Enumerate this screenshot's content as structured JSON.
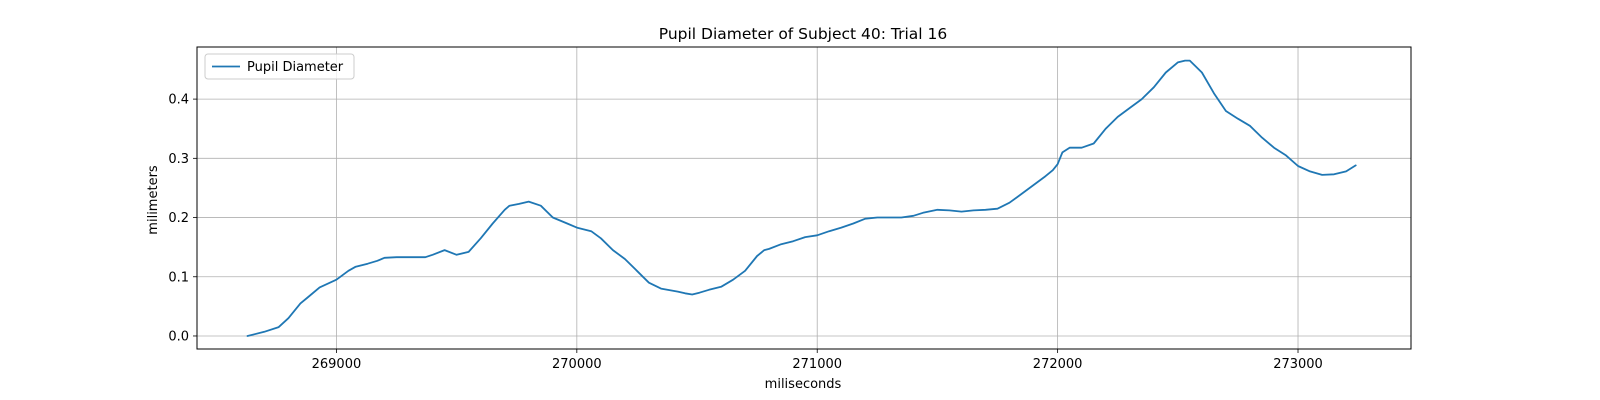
{
  "chart_data": {
    "type": "line",
    "title": "Pupil Diameter of Subject 40: Trial 16",
    "xlabel": "miliseconds",
    "ylabel": "milimeters",
    "xlim": [
      268420,
      273470
    ],
    "ylim": [
      -0.022,
      0.488
    ],
    "xticks": [
      269000,
      270000,
      271000,
      272000,
      273000
    ],
    "yticks": [
      0.0,
      0.1,
      0.2,
      0.3,
      0.4
    ],
    "xtick_labels": [
      "269000",
      "270000",
      "271000",
      "272000",
      "273000"
    ],
    "ytick_labels": [
      "0.0",
      "0.1",
      "0.2",
      "0.3",
      "0.4"
    ],
    "grid": true,
    "legend_position": "top-left",
    "line_color": "#1f77b4",
    "series": [
      {
        "name": "Pupil Diameter",
        "x": [
          268630,
          268700,
          268760,
          268800,
          268850,
          268880,
          268930,
          269000,
          269050,
          269080,
          269130,
          269170,
          269200,
          269250,
          269300,
          269370,
          269400,
          269450,
          269500,
          269550,
          269600,
          269650,
          269700,
          269720,
          269760,
          269800,
          269850,
          269900,
          269960,
          270000,
          270060,
          270100,
          270150,
          270200,
          270250,
          270300,
          270350,
          270420,
          270450,
          270480,
          270510,
          270550,
          270600,
          270650,
          270700,
          270750,
          270780,
          270800,
          270850,
          270900,
          270950,
          271000,
          271050,
          271100,
          271150,
          271200,
          271250,
          271300,
          271350,
          271400,
          271440,
          271500,
          271550,
          271600,
          271650,
          271700,
          271750,
          271800,
          271850,
          271900,
          271950,
          271980,
          272000,
          272020,
          272050,
          272100,
          272150,
          272200,
          272250,
          272300,
          272350,
          272400,
          272450,
          272500,
          272530,
          272550,
          272600,
          272650,
          272700,
          272750,
          272800,
          272850,
          272900,
          272950,
          273000,
          273050,
          273100,
          273150,
          273200,
          273240
        ],
        "y": [
          0.0,
          0.007,
          0.015,
          0.03,
          0.055,
          0.065,
          0.082,
          0.095,
          0.11,
          0.117,
          0.122,
          0.127,
          0.132,
          0.133,
          0.133,
          0.133,
          0.137,
          0.145,
          0.137,
          0.142,
          0.165,
          0.19,
          0.213,
          0.22,
          0.223,
          0.227,
          0.22,
          0.2,
          0.19,
          0.183,
          0.177,
          0.165,
          0.145,
          0.13,
          0.11,
          0.09,
          0.08,
          0.075,
          0.072,
          0.07,
          0.073,
          0.078,
          0.083,
          0.095,
          0.11,
          0.135,
          0.145,
          0.147,
          0.155,
          0.16,
          0.167,
          0.17,
          0.177,
          0.183,
          0.19,
          0.198,
          0.2,
          0.2,
          0.2,
          0.203,
          0.208,
          0.213,
          0.212,
          0.21,
          0.212,
          0.213,
          0.215,
          0.225,
          0.24,
          0.255,
          0.27,
          0.28,
          0.29,
          0.31,
          0.318,
          0.318,
          0.325,
          0.35,
          0.37,
          0.385,
          0.4,
          0.42,
          0.445,
          0.462,
          0.465,
          0.465,
          0.445,
          0.41,
          0.38,
          0.367,
          0.355,
          0.335,
          0.318,
          0.305,
          0.287,
          0.278,
          0.272,
          0.273,
          0.278,
          0.288
        ]
      }
    ]
  }
}
